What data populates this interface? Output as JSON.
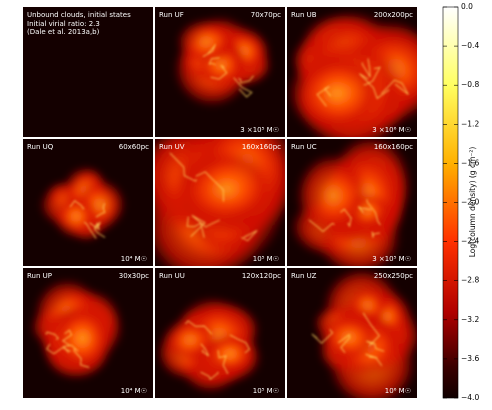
{
  "panels": [
    {
      "name": "Unbound clouds, initial states",
      "lines": [
        "Initial virial ratio: 2.3",
        "(Dale et al. 2013a,b)"
      ]
    },
    {
      "name": "Run UF",
      "size": "70x70pc",
      "mass": "3 ×10⁵ M☉"
    },
    {
      "name": "Run UB",
      "size": "200x200pc",
      "mass": "3 ×10⁶ M☉"
    },
    {
      "name": "Run UQ",
      "size": "60x60pc",
      "mass": "10⁴ M☉"
    },
    {
      "name": "Run UV",
      "size": "160x160pc",
      "mass": "10⁵ M☉"
    },
    {
      "name": "Run UC",
      "size": "160x160pc",
      "mass": "3 ×10⁵ M☉"
    },
    {
      "name": "Run UP",
      "size": "30x30pc",
      "mass": "10⁴ M☉"
    },
    {
      "name": "Run UU",
      "size": "120x120pc",
      "mass": "10⁵ M☉"
    },
    {
      "name": "Run UZ",
      "size": "250x250pc",
      "mass": "10⁶ M☉"
    }
  ],
  "colorbar": {
    "label": "Log(column density) (g cm⁻²)",
    "clim": [
      -4.0,
      0.0
    ],
    "ticks": [
      {
        "value": 0.0,
        "label": "0.0"
      },
      {
        "value": -0.4,
        "label": "−0.4"
      },
      {
        "value": -0.8,
        "label": "−0.8"
      },
      {
        "value": -1.2,
        "label": "−1.2"
      },
      {
        "value": -1.6,
        "label": "−1.6"
      },
      {
        "value": -2.0,
        "label": "−2.0"
      },
      {
        "value": -2.4,
        "label": "−2.4"
      },
      {
        "value": -2.8,
        "label": "−2.8"
      },
      {
        "value": -3.2,
        "label": "−3.2"
      },
      {
        "value": -3.6,
        "label": "−3.6"
      },
      {
        "value": -4.0,
        "label": "−4.0"
      }
    ]
  }
}
